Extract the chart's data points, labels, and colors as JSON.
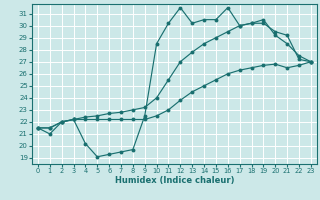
{
  "xlabel": "Humidex (Indice chaleur)",
  "bg_color": "#cce8e8",
  "grid_color": "#ffffff",
  "line_color": "#1a7070",
  "xlim": [
    -0.5,
    23.5
  ],
  "ylim": [
    18.5,
    31.8
  ],
  "xticks": [
    0,
    1,
    2,
    3,
    4,
    5,
    6,
    7,
    8,
    9,
    10,
    11,
    12,
    13,
    14,
    15,
    16,
    17,
    18,
    19,
    20,
    21,
    22,
    23
  ],
  "yticks": [
    19,
    20,
    21,
    22,
    23,
    24,
    25,
    26,
    27,
    28,
    29,
    30,
    31
  ],
  "line1_x": [
    0,
    1,
    2,
    3,
    4,
    5,
    6,
    7,
    8,
    9,
    10,
    11,
    12,
    13,
    14,
    15,
    16,
    17,
    18,
    19,
    20,
    21,
    22,
    23
  ],
  "line1_y": [
    21.5,
    21.0,
    22.0,
    22.2,
    20.2,
    19.1,
    19.3,
    19.5,
    19.7,
    22.5,
    28.5,
    30.2,
    31.5,
    30.2,
    30.5,
    30.5,
    31.5,
    30.0,
    30.2,
    30.5,
    29.2,
    28.5,
    27.5,
    27.0
  ],
  "line2_x": [
    0,
    1,
    2,
    3,
    4,
    5,
    6,
    7,
    8,
    9,
    10,
    11,
    12,
    13,
    14,
    15,
    16,
    17,
    18,
    19,
    20,
    21,
    22,
    23
  ],
  "line2_y": [
    21.5,
    21.5,
    22.0,
    22.2,
    22.4,
    22.5,
    22.7,
    22.8,
    23.0,
    23.2,
    24.0,
    25.5,
    27.0,
    27.8,
    28.5,
    29.0,
    29.5,
    30.0,
    30.2,
    30.2,
    29.5,
    29.2,
    27.2,
    27.0
  ],
  "line3_x": [
    0,
    1,
    2,
    3,
    4,
    5,
    6,
    7,
    8,
    9,
    10,
    11,
    12,
    13,
    14,
    15,
    16,
    17,
    18,
    19,
    20,
    21,
    22,
    23
  ],
  "line3_y": [
    21.5,
    21.5,
    22.0,
    22.2,
    22.2,
    22.2,
    22.2,
    22.2,
    22.2,
    22.2,
    22.5,
    23.0,
    23.8,
    24.5,
    25.0,
    25.5,
    26.0,
    26.3,
    26.5,
    26.7,
    26.8,
    26.5,
    26.7,
    27.0
  ]
}
